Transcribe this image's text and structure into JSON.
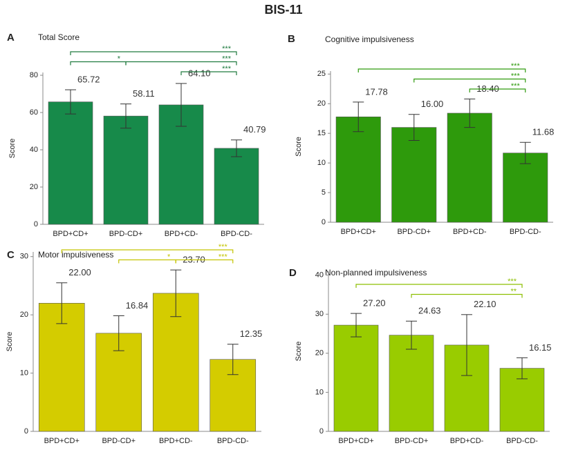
{
  "title": "BIS-11",
  "chart_data": [
    {
      "type": "bar",
      "panel": "A",
      "title": "Total Score",
      "ylabel": "Score",
      "categories": [
        "BPD+CD+",
        "BPD-CD+",
        "BPD+CD-",
        "BPD-CD-"
      ],
      "values": [
        65.72,
        58.11,
        64.1,
        40.79
      ],
      "value_labels": [
        "65.72",
        "58.11",
        "64.10",
        "40.79"
      ],
      "errors": [
        6.5,
        6.5,
        11.5,
        4.5
      ],
      "color": "#178a4a",
      "bracket_color": "#1e7a3e",
      "ylim": [
        0,
        81.5
      ],
      "yticks": [
        0,
        20,
        40,
        60,
        80
      ],
      "brackets": [
        [
          {
            "from": "BPD+CD+",
            "to": "BPD-CD-",
            "label": "***"
          }
        ],
        [
          {
            "from": "BPD+CD+",
            "to": "BPD-CD+",
            "label": "*"
          },
          {
            "from": "BPD-CD+",
            "to": "BPD-CD-",
            "label": "***"
          }
        ],
        [
          {
            "from": "BPD+CD-",
            "to": "BPD-CD-",
            "label": "***"
          }
        ]
      ]
    },
    {
      "type": "bar",
      "panel": "B",
      "title": "Cognitive impulsiveness",
      "ylabel": "Score",
      "categories": [
        "BPD+CD+",
        "BPD-CD+",
        "BPD+CD-",
        "BPD-CD-"
      ],
      "values": [
        17.78,
        16.0,
        18.4,
        11.68
      ],
      "value_labels": [
        "17.78",
        "16.00",
        "18.40",
        "11.68"
      ],
      "errors": [
        2.5,
        2.2,
        2.4,
        1.8
      ],
      "color": "#2e9a0c",
      "bracket_color": "#2e9a0c",
      "ylim": [
        0,
        25.5
      ],
      "yticks": [
        0,
        5,
        10,
        15,
        20,
        25
      ],
      "brackets": [
        [
          {
            "from": "BPD+CD+",
            "to": "BPD-CD-",
            "label": "***"
          }
        ],
        [
          {
            "from": "BPD-CD+",
            "to": "BPD-CD-",
            "label": "***"
          }
        ],
        [
          {
            "from": "BPD+CD-",
            "to": "BPD-CD-",
            "label": "***"
          }
        ]
      ]
    },
    {
      "type": "bar",
      "panel": "C",
      "title": "Motor impulsiveness",
      "ylabel": "Score",
      "categories": [
        "BPD+CD+",
        "BPD-CD+",
        "BPD+CD-",
        "BPD-CD-"
      ],
      "values": [
        22.0,
        16.84,
        23.7,
        12.35
      ],
      "value_labels": [
        "22.00",
        "16.84",
        "23.70",
        "12.35"
      ],
      "errors": [
        3.5,
        3.0,
        4.0,
        2.6
      ],
      "color": "#d4cc00",
      "bracket_color": "#c4c400",
      "ylim": [
        0,
        30.8
      ],
      "yticks": [
        0,
        10,
        20,
        30
      ],
      "brackets": [
        [
          {
            "from": "BPD+CD+",
            "to": "BPD-CD-",
            "label": "***"
          }
        ],
        [
          {
            "from": "BPD-CD+",
            "to": "BPD+CD-",
            "label": "*"
          },
          {
            "from": "BPD+CD-",
            "to": "BPD-CD-",
            "label": "***"
          }
        ]
      ]
    },
    {
      "type": "bar",
      "panel": "D",
      "title": "Non-planned impulsiveness",
      "ylabel": "Score",
      "categories": [
        "BPD+CD+",
        "BPD-CD+",
        "BPD+CD-",
        "BPD-CD-"
      ],
      "values": [
        27.2,
        24.63,
        22.1,
        16.15
      ],
      "value_labels": [
        "27.20",
        "24.63",
        "22.10",
        "16.15"
      ],
      "errors": [
        3.0,
        3.6,
        7.8,
        2.7
      ],
      "color": "#99cc00",
      "bracket_color": "#8cbf00",
      "ylim": [
        0,
        41
      ],
      "yticks": [
        0,
        10,
        20,
        30,
        40
      ],
      "brackets": [
        [
          {
            "from": "BPD+CD+",
            "to": "BPD-CD-",
            "label": "***"
          }
        ],
        [
          {
            "from": "BPD-CD+",
            "to": "BPD-CD-",
            "label": "**"
          }
        ]
      ]
    }
  ]
}
